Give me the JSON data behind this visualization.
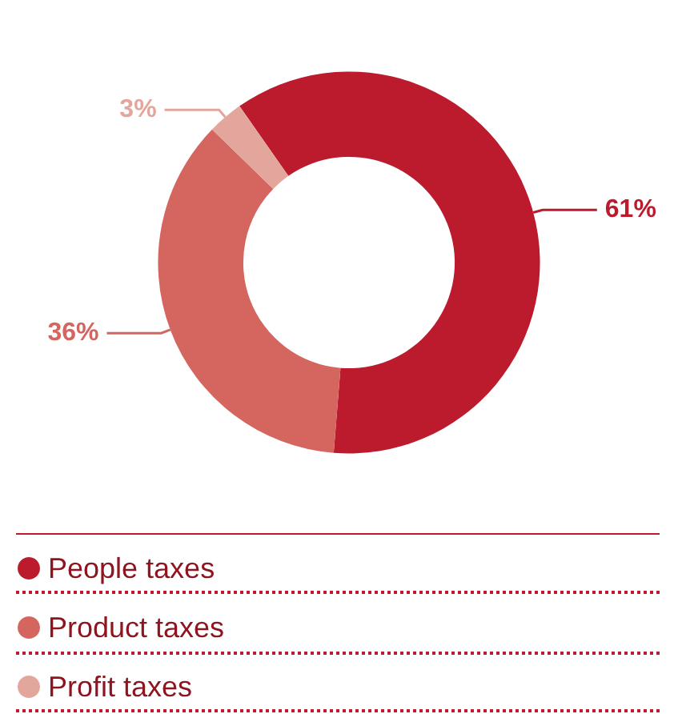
{
  "chart_data": {
    "type": "donut",
    "categories": [
      "People taxes",
      "Product taxes",
      "Profit taxes"
    ],
    "values": [
      61,
      36,
      3
    ],
    "value_labels": [
      "61%",
      "36%",
      "3%"
    ],
    "colors": [
      "#bb1b2c",
      "#d4655f",
      "#e3a69d"
    ],
    "legend": "bottom"
  }
}
